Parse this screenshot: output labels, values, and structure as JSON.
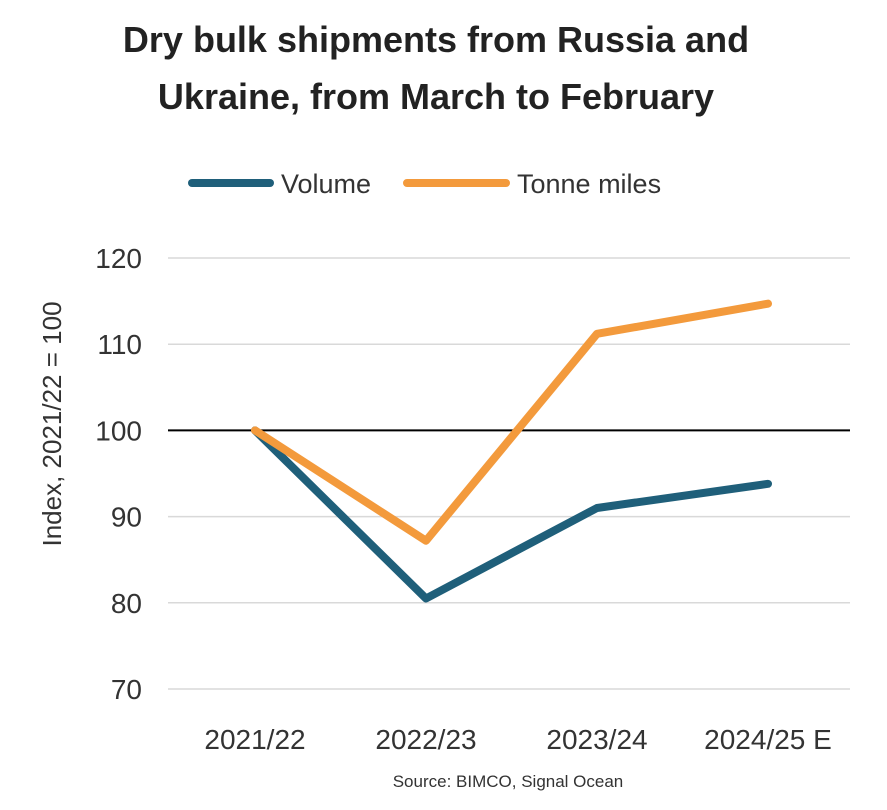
{
  "chart_data": {
    "type": "line",
    "title_lines": [
      "Dry bulk shipments from Russia and",
      "Ukraine, from March to February"
    ],
    "ylabel": "Index, 2021/22 = 100",
    "xlabel": "",
    "categories": [
      "2021/22",
      "2022/23",
      "2023/24",
      "2024/25 E"
    ],
    "series": [
      {
        "name": "Volume",
        "color": "#1f5f7a",
        "values": [
          100,
          80.5,
          91,
          93.8
        ]
      },
      {
        "name": "Tonne miles",
        "color": "#f39a3c",
        "values": [
          100,
          87.2,
          111.2,
          114.7
        ]
      }
    ],
    "ylim": [
      70,
      120
    ],
    "yticks": [
      70,
      80,
      90,
      100,
      110,
      120
    ],
    "reference_line": 100,
    "grid": true,
    "legend_position": "top",
    "source": "Source: BIMCO, Signal Ocean"
  }
}
